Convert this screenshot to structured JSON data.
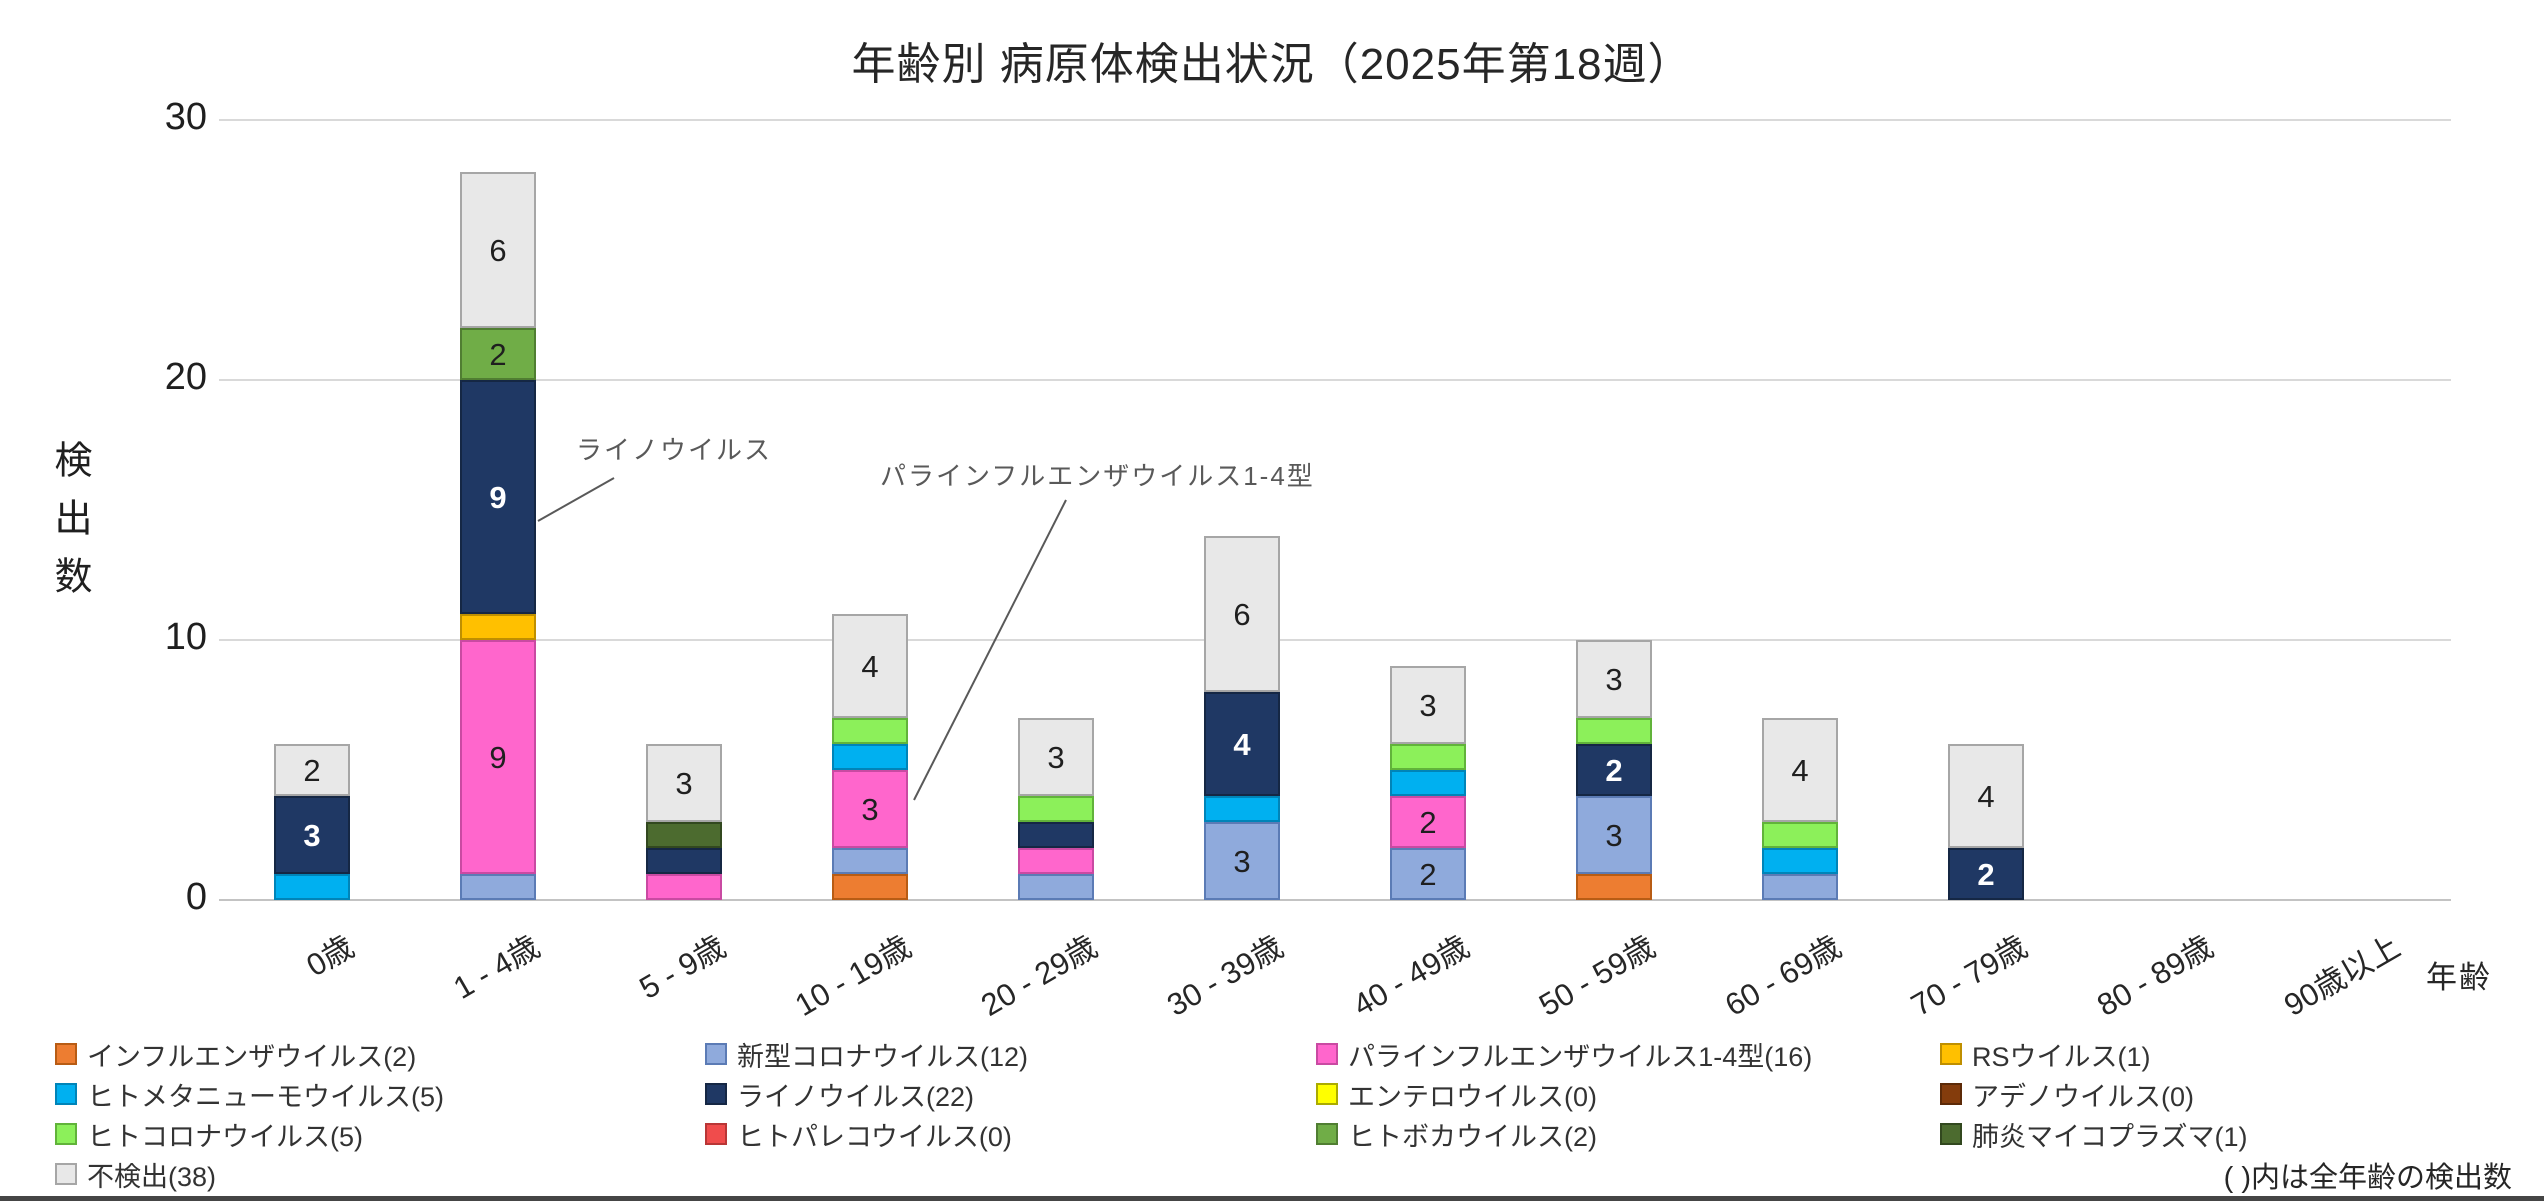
{
  "title": "年齢別 病原体検出状況（2025年第18週）",
  "y_axis": {
    "title": "検出数",
    "ticks": [
      0,
      10,
      20,
      30
    ],
    "max": 30
  },
  "x_axis": {
    "title": "年齢"
  },
  "annotations": [
    {
      "text": "ライノウイルス",
      "target": "1 - 4歳のライノウイルス区分"
    },
    {
      "text": "パラインフルエンザウイルス1-4型",
      "target": "10 - 19歳のパラインフルエンザ区分"
    }
  ],
  "legend_note": "( )内は全年齢の検出数",
  "chart_data": {
    "type": "bar",
    "stacked": true,
    "title": "年齢別 病原体検出状況（2025年第18週）",
    "xlabel": "年齢",
    "ylabel": "検出数",
    "ylim": [
      0,
      30
    ],
    "yticks": [
      0,
      10,
      20,
      30
    ],
    "grid": true,
    "legend_position": "bottom",
    "value_labels_shown_when": ">=2",
    "categories": [
      "0歳",
      "1 - 4歳",
      "5 - 9歳",
      "10 - 19歳",
      "20 - 29歳",
      "30 - 39歳",
      "40 - 49歳",
      "50 - 59歳",
      "60 - 69歳",
      "70 - 79歳",
      "80 - 89歳",
      "90歳以上"
    ],
    "series": [
      {
        "name": "インフルエンザウイルス",
        "legend_label": "インフルエンザウイルス(2)",
        "total": 2,
        "color": "#ED7D31",
        "border": "#B85C14",
        "values": [
          0,
          0,
          0,
          1,
          0,
          0,
          0,
          1,
          0,
          0,
          0,
          0
        ]
      },
      {
        "name": "新型コロナウイルス",
        "legend_label": "新型コロナウイルス(12)",
        "total": 12,
        "color": "#8FAADC",
        "border": "#5B7BB5",
        "values": [
          0,
          1,
          0,
          1,
          1,
          3,
          2,
          3,
          1,
          0,
          0,
          0
        ]
      },
      {
        "name": "パラインフルエンザウイルス1-4型",
        "legend_label": "パラインフルエンザウイルス1-4型(16)",
        "total": 16,
        "color": "#FF66CC",
        "border": "#C94AA2",
        "values": [
          0,
          9,
          1,
          3,
          1,
          0,
          2,
          0,
          0,
          0,
          0,
          0
        ]
      },
      {
        "name": "RSウイルス",
        "legend_label": "RSウイルス(1)",
        "total": 1,
        "color": "#FFC000",
        "border": "#BF8F00",
        "values": [
          0,
          1,
          0,
          0,
          0,
          0,
          0,
          0,
          0,
          0,
          0,
          0
        ]
      },
      {
        "name": "ヒトメタニューモウイルス",
        "legend_label": "ヒトメタニューモウイルス(5)",
        "total": 5,
        "color": "#00B0F0",
        "border": "#0084B8",
        "values": [
          1,
          0,
          0,
          1,
          0,
          1,
          1,
          0,
          1,
          0,
          0,
          0
        ]
      },
      {
        "name": "ライノウイルス",
        "legend_label": "ライノウイルス(22)",
        "total": 22,
        "color": "#1F3864",
        "border": "#152744",
        "value_label_color": "#ffffff",
        "values": [
          3,
          9,
          1,
          0,
          1,
          4,
          0,
          2,
          0,
          2,
          0,
          0
        ]
      },
      {
        "name": "エンテロウイルス",
        "legend_label": "エンテロウイルス(0)",
        "total": 0,
        "color": "#FFFF00",
        "border": "#ABAB00",
        "values": [
          0,
          0,
          0,
          0,
          0,
          0,
          0,
          0,
          0,
          0,
          0,
          0
        ]
      },
      {
        "name": "アデノウイルス",
        "legend_label": "アデノウイルス(0)",
        "total": 0,
        "color": "#843C0C",
        "border": "#5C2A08",
        "values": [
          0,
          0,
          0,
          0,
          0,
          0,
          0,
          0,
          0,
          0,
          0,
          0
        ]
      },
      {
        "name": "ヒトコロナウイルス",
        "legend_label": "ヒトコロナウイルス(5)",
        "total": 5,
        "color": "#8CF05A",
        "border": "#61B33A",
        "values": [
          0,
          0,
          0,
          1,
          1,
          0,
          1,
          1,
          1,
          0,
          0,
          0
        ]
      },
      {
        "name": "ヒトパレコウイルス",
        "legend_label": "ヒトパレコウイルス(0)",
        "total": 0,
        "color": "#F04C4C",
        "border": "#B93636",
        "values": [
          0,
          0,
          0,
          0,
          0,
          0,
          0,
          0,
          0,
          0,
          0,
          0
        ]
      },
      {
        "name": "ヒトボカウイルス",
        "legend_label": "ヒトボカウイルス(2)",
        "total": 2,
        "color": "#70AD47",
        "border": "#507E32",
        "values": [
          0,
          2,
          0,
          0,
          0,
          0,
          0,
          0,
          0,
          0,
          0,
          0
        ]
      },
      {
        "name": "肺炎マイコプラズマ",
        "legend_label": "肺炎マイコプラズマ(1)",
        "total": 1,
        "color": "#4C6B2F",
        "border": "#32481F",
        "values": [
          0,
          0,
          1,
          0,
          0,
          0,
          0,
          0,
          0,
          0,
          0,
          0
        ]
      },
      {
        "name": "不検出",
        "legend_label": "不検出(38)",
        "total": 38,
        "color": "#E8E8E8",
        "border": "#A6A6A6",
        "values": [
          2,
          6,
          3,
          4,
          3,
          6,
          3,
          3,
          4,
          4,
          0,
          0
        ]
      }
    ]
  }
}
